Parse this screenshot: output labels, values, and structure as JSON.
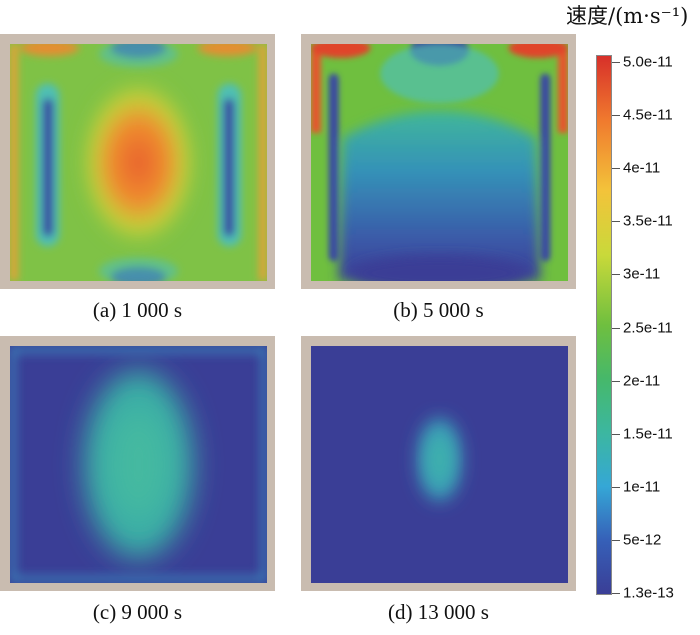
{
  "colorbar": {
    "title": "速度/(m·s⁻¹)",
    "labels": [
      "5.0e-11",
      "4.5e-11",
      "4e-11",
      "3.5e-11",
      "3e-11",
      "2.5e-11",
      "2e-11",
      "1.5e-11",
      "1e-11",
      "5e-12",
      "1.3e-13"
    ]
  },
  "panels": [
    {
      "caption": "(a) 1 000 s"
    },
    {
      "caption": "(b) 5 000 s"
    },
    {
      "caption": "(c) 9 000 s"
    },
    {
      "caption": "(d) 13 000 s"
    }
  ]
}
